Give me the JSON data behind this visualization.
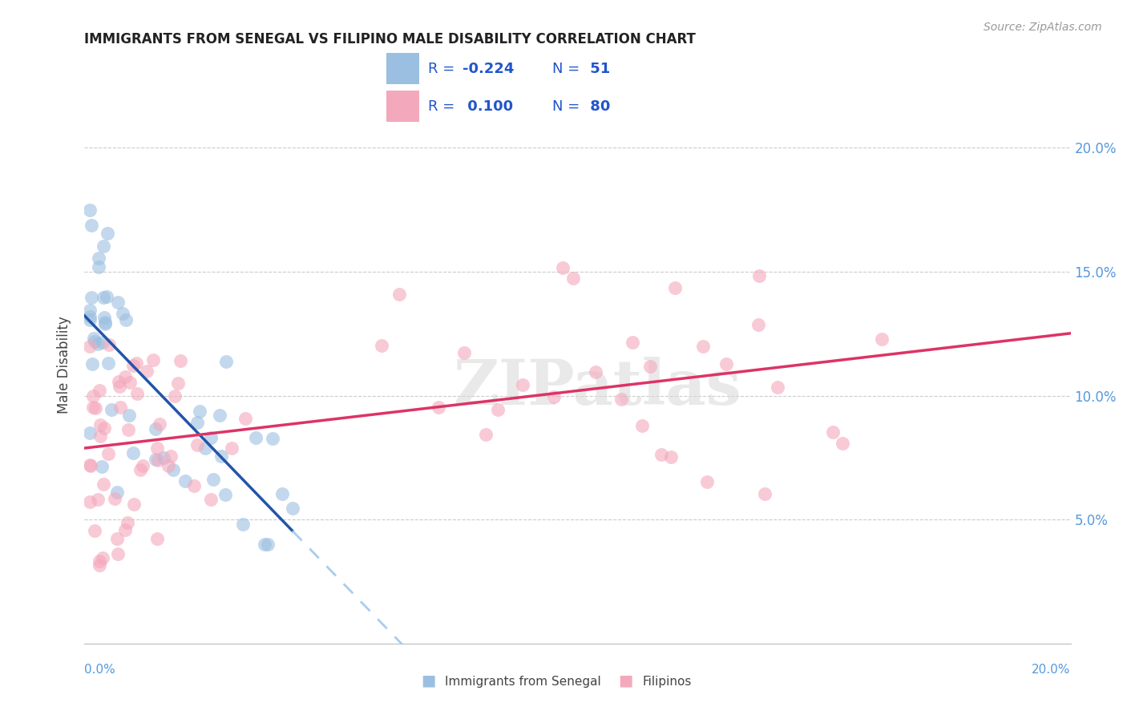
{
  "title": "IMMIGRANTS FROM SENEGAL VS FILIPINO MALE DISABILITY CORRELATION CHART",
  "source": "Source: ZipAtlas.com",
  "ylabel": "Male Disability",
  "xlim": [
    0.0,
    0.2
  ],
  "ylim": [
    0.0,
    0.225
  ],
  "yticks": [
    0.05,
    0.1,
    0.15,
    0.2
  ],
  "ytick_labels": [
    "5.0%",
    "10.0%",
    "15.0%",
    "20.0%"
  ],
  "blue_label": "Immigrants from Senegal",
  "pink_label": "Filipinos",
  "legend_blue_R": "-0.224",
  "legend_blue_N": "51",
  "legend_pink_R": "0.100",
  "legend_pink_N": "80",
  "blue_color": "#9bbfe0",
  "pink_color": "#f4a8bc",
  "trendline_blue": "#2255aa",
  "trendline_pink": "#dd3366",
  "trendline_dashed_color": "#aaccee",
  "legend_text_color": "#2255cc",
  "watermark": "ZIPatlas",
  "background": "#ffffff",
  "grid_color": "#cccccc",
  "title_color": "#222222",
  "axis_label_color": "#444444",
  "right_tick_color": "#5599dd",
  "source_color": "#999999"
}
